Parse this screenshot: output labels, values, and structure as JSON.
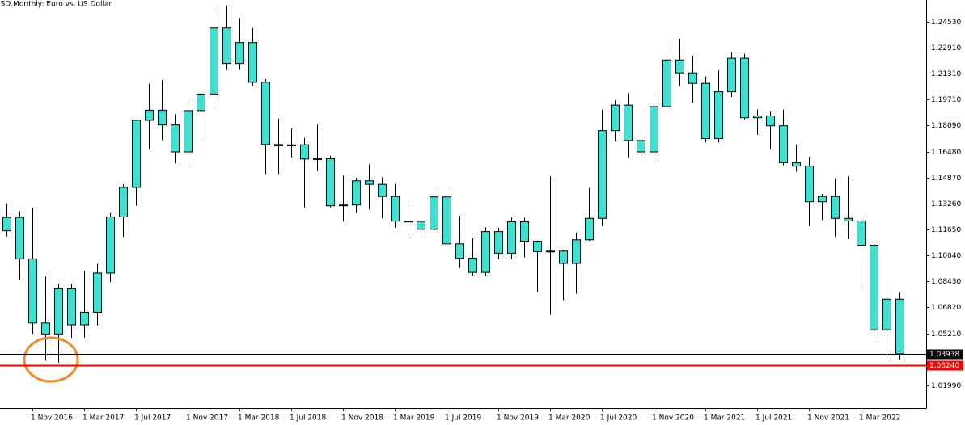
{
  "chart_data": {
    "type": "candlestick",
    "title": "USD,Monthly:  Euro vs. US Dollar",
    "categories": [
      null,
      null,
      "1 Nov 2016",
      null,
      null,
      null,
      "1 Mar 2017",
      null,
      null,
      null,
      "1 Jul 2017",
      null,
      null,
      null,
      "1 Nov 2017",
      null,
      null,
      null,
      "1 Mar 2018",
      null,
      null,
      null,
      "1 Jul 2018",
      null,
      null,
      null,
      "1 Nov 2018",
      null,
      null,
      null,
      "1 Mar 2019",
      null,
      null,
      null,
      "1 Jul 2019",
      null,
      null,
      null,
      "1 Nov 2019",
      null,
      null,
      null,
      "1 Mar 2020",
      null,
      null,
      null,
      "1 Jul 2020",
      null,
      null,
      null,
      "1 Nov 2020",
      null,
      null,
      null,
      "1 Mar 2021",
      null,
      null,
      null,
      "1 Jul 2021",
      null,
      null,
      null,
      "1 Nov 2021",
      null,
      null,
      null,
      "1 Mar 2022",
      null,
      null,
      null
    ],
    "open": [
      1.1157,
      1.124,
      1.0983,
      1.0585,
      1.0517,
      1.0797,
      1.0574,
      1.0652,
      1.0895,
      1.1243,
      1.1426,
      1.1842,
      1.1905,
      1.1813,
      1.1646,
      1.1902,
      1.2005,
      1.2414,
      1.2194,
      1.2324,
      1.2078,
      1.1692,
      1.1684,
      1.169,
      1.1602,
      1.1604,
      1.1312,
      1.1317,
      1.1467,
      1.1445,
      1.137,
      1.1217,
      1.1215,
      1.1166,
      1.1367,
      1.1076,
      1.0987,
      1.0899,
      1.1152,
      1.1018,
      1.1213,
      1.1092,
      1.1027,
      1.1031,
      1.0955,
      1.1101,
      1.1234,
      1.1778,
      1.1936,
      1.1717,
      1.1646,
      1.1927,
      1.2216,
      1.2136,
      1.2071,
      1.1729,
      1.2019,
      1.2227,
      1.1858,
      1.1869,
      1.1808,
      1.1579,
      1.1558,
      1.1337,
      1.137,
      1.1234,
      1.1218,
      1.1067,
      1.0543,
      1.0733
    ],
    "high": [
      1.1327,
      1.1278,
      1.13,
      1.0874,
      1.0829,
      1.0829,
      1.0906,
      1.0951,
      1.1268,
      1.1445,
      1.1846,
      1.207,
      1.2092,
      1.188,
      1.1961,
      1.2023,
      1.2537,
      1.2555,
      1.2476,
      1.2414,
      1.2097,
      1.1852,
      1.1791,
      1.1734,
      1.1815,
      1.1622,
      1.15,
      1.1486,
      1.157,
      1.1489,
      1.1448,
      1.1324,
      1.1265,
      1.1412,
      1.1412,
      1.1249,
      1.111,
      1.1179,
      1.1176,
      1.124,
      1.1239,
      1.1096,
      1.1495,
      1.1039,
      1.1147,
      1.1422,
      1.1909,
      1.1966,
      1.2011,
      1.188,
      1.2004,
      1.231,
      1.2349,
      1.2243,
      1.2113,
      1.215,
      1.2266,
      1.2254,
      1.1909,
      1.19,
      1.1909,
      1.1692,
      1.1616,
      1.1386,
      1.1482,
      1.1495,
      1.1233,
      1.1076,
      1.0787,
      1.0774
    ],
    "low": [
      1.1122,
      1.0852,
      1.0518,
      1.0352,
      1.034,
      1.0494,
      1.0495,
      1.0569,
      1.0839,
      1.1118,
      1.1312,
      1.1662,
      1.1718,
      1.1575,
      1.1554,
      1.1717,
      1.1916,
      1.2153,
      1.2154,
      1.2055,
      1.1509,
      1.1509,
      1.1612,
      1.1301,
      1.1526,
      1.1302,
      1.1215,
      1.1267,
      1.1289,
      1.1234,
      1.1176,
      1.111,
      1.1107,
      1.116,
      1.1027,
      1.0926,
      1.0879,
      1.0879,
      1.0981,
      1.0981,
      1.0992,
      1.0778,
      1.0636,
      1.0727,
      1.0767,
      1.1095,
      1.1185,
      1.1711,
      1.1612,
      1.1622,
      1.1603,
      1.1925,
      1.2054,
      1.1952,
      1.1704,
      1.1704,
      1.1986,
      1.1847,
      1.1752,
      1.1663,
      1.1563,
      1.1524,
      1.1186,
      1.1222,
      1.1121,
      1.1106,
      1.0806,
      1.047,
      1.0349,
      1.0359
    ],
    "close": [
      1.124,
      1.0983,
      1.0585,
      1.0517,
      1.0797,
      1.0574,
      1.0652,
      1.0895,
      1.1243,
      1.1426,
      1.1842,
      1.1905,
      1.1813,
      1.1646,
      1.1902,
      1.2005,
      1.2414,
      1.2194,
      1.2324,
      1.2078,
      1.1692,
      1.1684,
      1.169,
      1.1602,
      1.1604,
      1.1312,
      1.1317,
      1.1467,
      1.1445,
      1.137,
      1.1217,
      1.1215,
      1.1166,
      1.1367,
      1.1076,
      1.0987,
      1.0899,
      1.1152,
      1.1018,
      1.1213,
      1.1092,
      1.1027,
      1.1031,
      1.0955,
      1.1101,
      1.1234,
      1.1778,
      1.1936,
      1.1717,
      1.1646,
      1.1927,
      1.2216,
      1.2136,
      1.2071,
      1.1729,
      1.2019,
      1.2227,
      1.1858,
      1.1869,
      1.1808,
      1.1579,
      1.1558,
      1.1337,
      1.137,
      1.1234,
      1.1218,
      1.1067,
      1.0543,
      1.0733,
      1.0394
    ],
    "color": "#40e0d0",
    "edge_color": "#000000",
    "ylim": [
      1.0058,
      1.2588
    ],
    "yticks": [
      {
        "value": 1.2453,
        "label": "1.24530"
      },
      {
        "value": 1.2291,
        "label": "1.22910"
      },
      {
        "value": 1.2131,
        "label": "1.21310"
      },
      {
        "value": 1.1971,
        "label": "1.19710"
      },
      {
        "value": 1.1809,
        "label": "1.18090"
      },
      {
        "value": 1.1648,
        "label": "1.16480"
      },
      {
        "value": 1.1487,
        "label": "1.14870"
      },
      {
        "value": 1.1326,
        "label": "1.13260"
      },
      {
        "value": 1.1165,
        "label": "1.11650"
      },
      {
        "value": 1.1004,
        "label": "1.10040"
      },
      {
        "value": 1.0843,
        "label": "1.08430"
      },
      {
        "value": 1.0682,
        "label": "1.06820"
      },
      {
        "value": 1.0521,
        "label": "1.05210"
      },
      {
        "value": 1.0199,
        "label": "1.01990"
      }
    ],
    "grid": false,
    "lines": [
      {
        "value": 1.03938,
        "label": "1.03938",
        "color": "#000000"
      },
      {
        "value": 1.0324,
        "label": "1.03240",
        "color": "#ff0000"
      }
    ]
  }
}
